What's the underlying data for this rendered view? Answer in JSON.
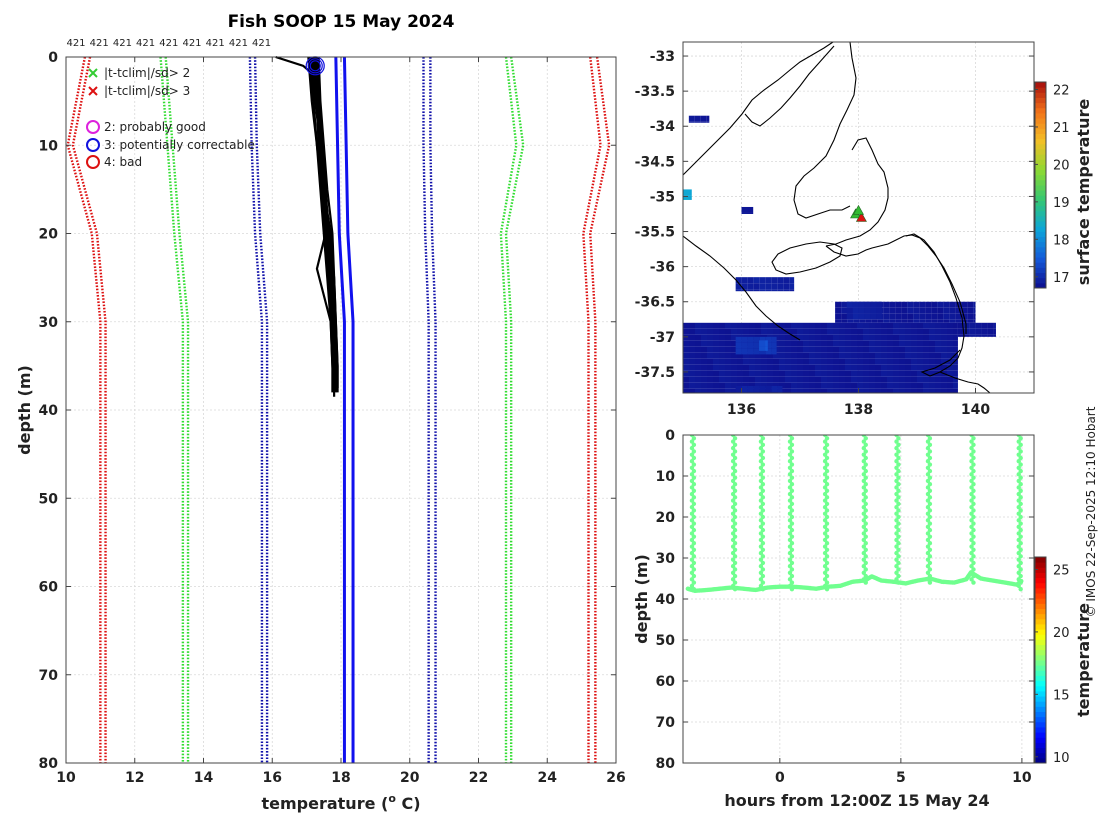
{
  "title": "Fish SOOP 15 May 2024",
  "copyright": "© IMOS 22-Sep-2025 12:10 Hobart",
  "chart_data": [
    {
      "type": "line",
      "name": "temperature-depth-profile",
      "xlabel": "temperature (°C)",
      "xlabel_parts": {
        "prefix": "temperature (",
        "superscript": "o",
        "suffix": " C)"
      },
      "ylabel": "depth (m)",
      "xlim": [
        10,
        26
      ],
      "ylim": [
        80,
        0
      ],
      "xticks": [
        10,
        12,
        14,
        16,
        18,
        20,
        22,
        24,
        26
      ],
      "yticks": [
        0,
        10,
        20,
        30,
        40,
        50,
        60,
        70,
        80
      ],
      "profile_count_labels": [
        "421",
        "421",
        "421",
        "421",
        "421",
        "421",
        "421",
        "421",
        "421"
      ],
      "legend": [
        {
          "symbol": "x",
          "color": "#33cc33",
          "label": "|t-tclim|/sd> 2"
        },
        {
          "symbol": "x",
          "color": "#dd1111",
          "label": "|t-tclim|/sd> 3"
        },
        {
          "symbol": "o",
          "color": "#dd22dd",
          "label": "2: probably good"
        },
        {
          "symbol": "o",
          "color": "#1111dd",
          "label": "3: potentially correctable"
        },
        {
          "symbol": "o",
          "color": "#dd1111",
          "label": "4: bad"
        }
      ],
      "climatology_depths": [
        0,
        10,
        20,
        30,
        80
      ],
      "climatology": [
        {
          "name": "clim -3sd",
          "color": "#dd1111",
          "style": "dotted",
          "values_a": [
            10.55,
            10.05,
            10.75,
            11.0,
            11.0
          ],
          "values_b": [
            10.7,
            10.2,
            10.9,
            11.15,
            11.15
          ]
        },
        {
          "name": "clim -2sd",
          "color": "#33dd33",
          "style": "dotted",
          "values_a": [
            12.75,
            12.95,
            13.15,
            13.4,
            13.4
          ],
          "values_b": [
            12.9,
            13.1,
            13.3,
            13.55,
            13.55
          ]
        },
        {
          "name": "clim -1sd",
          "color": "#1111aa",
          "style": "dotted",
          "values_a": [
            15.35,
            15.4,
            15.5,
            15.7,
            15.7
          ],
          "values_b": [
            15.5,
            15.55,
            15.65,
            15.85,
            15.85
          ]
        },
        {
          "name": "clim +1sd",
          "color": "#1111aa",
          "style": "dotted",
          "values_a": [
            20.4,
            20.4,
            20.45,
            20.55,
            20.55
          ],
          "values_b": [
            20.6,
            20.6,
            20.65,
            20.75,
            20.75
          ]
        },
        {
          "name": "clim +2sd",
          "color": "#33dd33",
          "style": "dotted",
          "values_a": [
            22.8,
            23.1,
            22.65,
            22.8,
            22.8
          ],
          "values_b": [
            22.95,
            23.3,
            22.8,
            22.95,
            22.95
          ]
        },
        {
          "name": "clim +3sd",
          "color": "#dd1111",
          "style": "dotted",
          "values_a": [
            25.25,
            25.55,
            25.05,
            25.2,
            25.2
          ],
          "values_b": [
            25.45,
            25.8,
            25.25,
            25.4,
            25.4
          ]
        }
      ],
      "climatology_mean": {
        "name": "clim mean",
        "color": "#1111ee",
        "depths": [
          0,
          20,
          30,
          80
        ],
        "values_a": [
          17.85,
          17.95,
          18.1,
          18.1
        ],
        "values_b": [
          18.1,
          18.2,
          18.35,
          18.35
        ]
      },
      "profiles": {
        "color": "#000000",
        "series": [
          {
            "depths": [
              0,
              5,
              10,
              15,
              20,
              25,
              30,
              35,
              38.5
            ],
            "values": [
              17.2,
              17.3,
              17.35,
              17.45,
              17.6,
              17.7,
              17.75,
              17.8,
              17.8
            ]
          },
          {
            "depths": [
              0,
              5,
              10,
              15,
              20,
              25,
              30,
              35,
              38
            ],
            "values": [
              17.1,
              17.2,
              17.3,
              17.4,
              17.5,
              17.6,
              17.7,
              17.75,
              17.75
            ]
          },
          {
            "depths": [
              0,
              5,
              10,
              15,
              20,
              25,
              30,
              35,
              37.5
            ],
            "values": [
              17.3,
              17.35,
              17.45,
              17.55,
              17.65,
              17.8,
              17.85,
              17.9,
              17.9
            ]
          },
          {
            "depths": [
              0,
              5,
              10,
              15,
              20,
              25,
              30,
              35,
              37
            ],
            "values": [
              17.15,
              17.25,
              17.4,
              17.5,
              17.55,
              17.65,
              17.75,
              17.8,
              17.85
            ]
          },
          {
            "depths": [
              0,
              5,
              10,
              15,
              20,
              25,
              30,
              35,
              36.5
            ],
            "values": [
              17.25,
              17.3,
              17.35,
              17.5,
              17.7,
              17.75,
              17.8,
              17.85,
              17.85
            ]
          },
          {
            "depths": [
              0,
              5,
              10,
              15,
              20,
              25,
              30,
              35,
              38
            ],
            "values": [
              17.35,
              17.4,
              17.5,
              17.6,
              17.75,
              17.8,
              17.85,
              17.9,
              17.9
            ]
          },
          {
            "depths": [
              0,
              5,
              10,
              15,
              20,
              24,
              30,
              35,
              37.5
            ],
            "values": [
              17.05,
              17.15,
              17.3,
              17.45,
              17.55,
              17.3,
              17.7,
              17.75,
              17.8
            ]
          },
          {
            "depths": [
              0,
              5,
              10,
              15,
              20,
              25,
              30,
              35,
              37
            ],
            "values": [
              17.2,
              17.3,
              17.45,
              17.55,
              17.6,
              17.7,
              17.8,
              17.85,
              17.85
            ]
          },
          {
            "depths": [
              0,
              1,
              2,
              5,
              10,
              15,
              20,
              25,
              30,
              35,
              38
            ],
            "values": [
              16.1,
              16.9,
              17.2,
              17.3,
              17.4,
              17.5,
              17.65,
              17.7,
              17.8,
              17.85,
              17.85
            ]
          }
        ]
      },
      "surface_markers": [
        {
          "temperature": 17.25,
          "depth": 1,
          "flag": "3: potentially correctable"
        }
      ]
    },
    {
      "type": "heatmap",
      "name": "surface-temperature-map",
      "xlim": [
        135,
        141
      ],
      "ylim": [
        -37.8,
        -32.8
      ],
      "xticks": [
        136,
        138,
        140
      ],
      "yticks": [
        -33,
        -33.5,
        -34,
        -34.5,
        -35,
        -35.5,
        -36,
        -36.5,
        -37,
        -37.5
      ],
      "ytick_labels": [
        "-33",
        "-33.5",
        "-34",
        "-34.5",
        "-35",
        "-35.5",
        "-36",
        "-36.5",
        "-37",
        "-37.5"
      ],
      "colorbar": {
        "label": "surface temperature",
        "min": 16.7,
        "max": 22.2,
        "ticks": [
          17,
          18,
          19,
          20,
          21,
          22
        ]
      },
      "sst_patches": [
        {
          "lon": [
            135,
            139.7
          ],
          "lat": [
            -37.8,
            -36.8
          ],
          "value": 16.8
        },
        {
          "lon": [
            139.7,
            140.35
          ],
          "lat": [
            -37.0,
            -36.8
          ],
          "value": 16.8
        },
        {
          "lon": [
            137.6,
            140.0
          ],
          "lat": [
            -36.8,
            -36.5
          ],
          "value": 16.8
        },
        {
          "lon": [
            135.9,
            136.9
          ],
          "lat": [
            -36.35,
            -36.15
          ],
          "value": 16.9
        },
        {
          "lon": [
            137.8,
            138.4
          ],
          "lat": [
            -36.75,
            -36.5
          ],
          "value": 16.9
        },
        {
          "lon": [
            135.9,
            136.7
          ],
          "lat": [
            -37.85,
            -37.7
          ],
          "value": 16.9
        },
        {
          "lon": [
            135.9,
            136.6
          ],
          "lat": [
            -37.25,
            -37.0
          ],
          "value": 17.1
        },
        {
          "lon": [
            136.3,
            136.45
          ],
          "lat": [
            -37.2,
            -37.05
          ],
          "value": 17.4
        },
        {
          "lon": [
            135.0,
            135.15
          ],
          "lat": [
            -35.05,
            -34.9
          ],
          "value": 18.3
        },
        {
          "lon": [
            135.1,
            135.45
          ],
          "lat": [
            -33.95,
            -33.85
          ],
          "value": 16.8
        },
        {
          "lon": [
            136.0,
            136.2
          ],
          "lat": [
            -35.25,
            -35.15
          ],
          "value": 16.8
        }
      ],
      "vessel_positions": [
        {
          "lon": 137.95,
          "lat": -35.25
        },
        {
          "lon": 138.05,
          "lat": -35.3
        },
        {
          "lon": 138.0,
          "lat": -35.2
        }
      ]
    },
    {
      "type": "scatter",
      "name": "depth-time-section",
      "xlabel": "hours from 12:00Z 15 May 24",
      "ylabel": "depth (m)",
      "xlim": [
        -4,
        10.5
      ],
      "ylim": [
        80,
        0
      ],
      "xticks": [
        0,
        5,
        10
      ],
      "yticks": [
        0,
        10,
        20,
        30,
        40,
        50,
        60,
        70,
        80
      ],
      "colorbar": {
        "label": "temperature",
        "min": 9.5,
        "max": 26,
        "ticks": [
          10,
          15,
          20,
          25
        ]
      },
      "point_temperature": 17.5,
      "cast_hours": [
        -3.6,
        -1.9,
        -0.75,
        0.45,
        1.9,
        3.5,
        4.85,
        6.15,
        7.95,
        9.9
      ],
      "cast_max_depth": [
        38,
        37,
        37.5,
        37,
        37.5,
        36,
        36,
        36.5,
        36.5,
        37.5
      ],
      "bottom_track": {
        "hours": [
          -3.8,
          -3.5,
          -3.0,
          -2.5,
          -2.0,
          -1.5,
          -1.0,
          -0.5,
          0.0,
          0.5,
          1.0,
          1.5,
          2.0,
          2.5,
          3.0,
          3.5,
          3.8,
          4.2,
          4.7,
          5.2,
          5.7,
          6.2,
          6.7,
          7.2,
          7.7,
          7.9,
          8.3,
          8.8,
          9.3,
          9.8,
          10.0
        ],
        "depths": [
          37.5,
          38.0,
          37.8,
          37.5,
          37.2,
          37.5,
          37.8,
          37.2,
          37.0,
          37.0,
          37.2,
          37.5,
          37.0,
          36.8,
          35.8,
          35.5,
          34.5,
          35.5,
          35.8,
          36.2,
          35.5,
          35.0,
          35.8,
          36.0,
          35.2,
          33.5,
          35.0,
          35.5,
          36.0,
          36.5,
          35.5
        ]
      }
    }
  ]
}
